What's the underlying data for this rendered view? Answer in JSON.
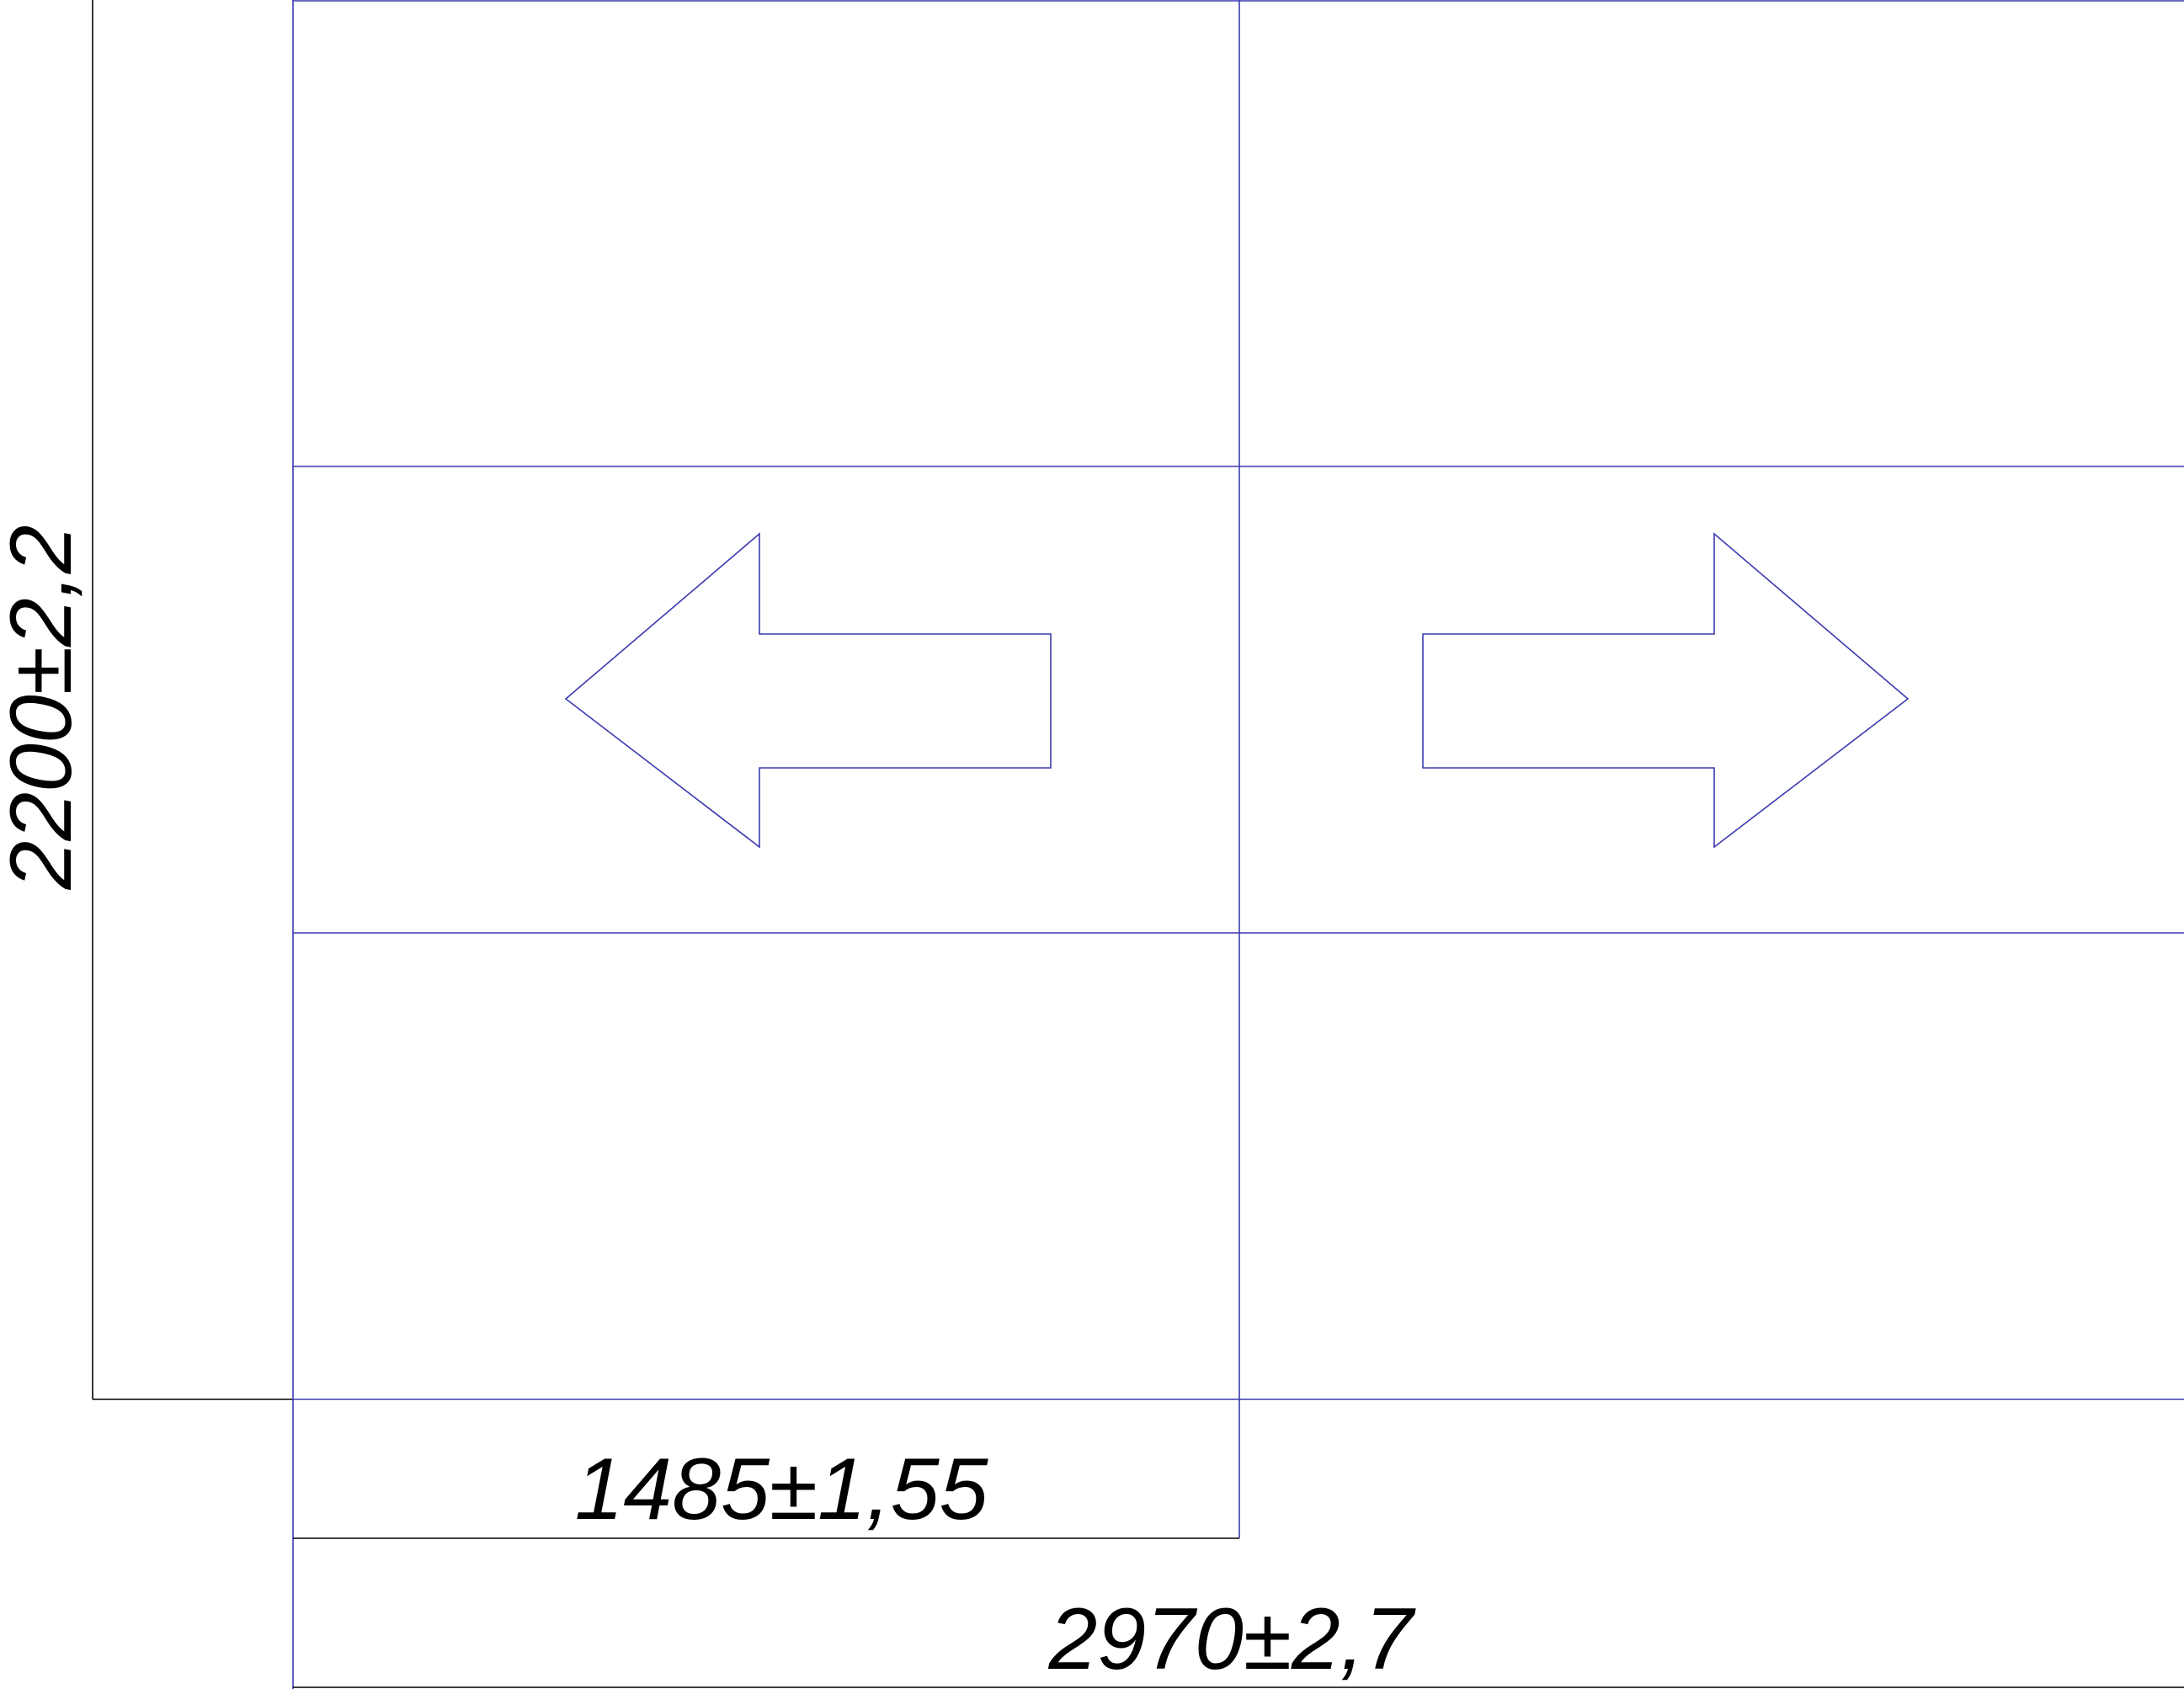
{
  "dimensions": {
    "height_label": "2200±2,2",
    "half_width_label": "1485±1,55",
    "full_width_label": "2970±2,7"
  },
  "arrows": {
    "left": "arrow-left-icon",
    "right": "arrow-right-icon"
  },
  "colors": {
    "line": "#3a3ab0",
    "dimension": "#000000",
    "background": "#ffffff"
  }
}
